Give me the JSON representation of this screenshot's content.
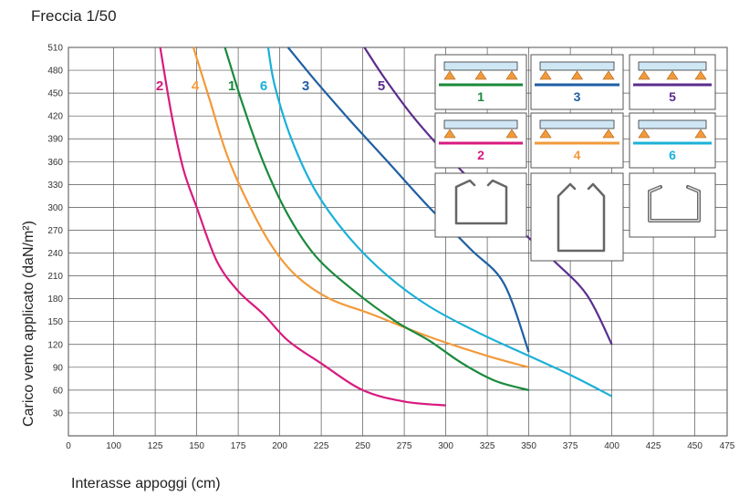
{
  "chart_data": {
    "type": "line",
    "title": "Freccia 1/50",
    "xlabel": "Interasse appoggi  (cm)",
    "ylabel": "Carico vento applicato  (daN/m²)",
    "x_ticks": [
      "0",
      "100",
      "125",
      "150",
      "175",
      "200",
      "225",
      "250",
      "275",
      "300",
      "325",
      "350",
      "375",
      "400",
      "425",
      "450",
      "475"
    ],
    "y_ticks": [
      30,
      60,
      90,
      120,
      150,
      180,
      210,
      240,
      270,
      300,
      330,
      360,
      390,
      420,
      450,
      480,
      510
    ],
    "ylim": [
      0,
      510
    ],
    "xlim": [
      0,
      475
    ],
    "grid": true,
    "series": [
      {
        "name": "2",
        "color": "#d81b7f",
        "points": [
          [
            128,
            510
          ],
          [
            135,
            420
          ],
          [
            142,
            350
          ],
          [
            150,
            300
          ],
          [
            162,
            230
          ],
          [
            175,
            190
          ],
          [
            190,
            160
          ],
          [
            205,
            125
          ],
          [
            225,
            95
          ],
          [
            250,
            60
          ],
          [
            275,
            45
          ],
          [
            300,
            40
          ]
        ]
      },
      {
        "name": "4",
        "color": "#f29a3a",
        "points": [
          [
            148,
            510
          ],
          [
            158,
            440
          ],
          [
            168,
            370
          ],
          [
            180,
            310
          ],
          [
            195,
            250
          ],
          [
            210,
            210
          ],
          [
            230,
            180
          ],
          [
            255,
            160
          ],
          [
            290,
            130
          ],
          [
            325,
            105
          ],
          [
            350,
            90
          ]
        ]
      },
      {
        "name": "1",
        "color": "#1a8a3c",
        "points": [
          [
            167,
            510
          ],
          [
            177,
            440
          ],
          [
            190,
            360
          ],
          [
            205,
            290
          ],
          [
            222,
            235
          ],
          [
            245,
            190
          ],
          [
            270,
            150
          ],
          [
            290,
            125
          ],
          [
            310,
            95
          ],
          [
            330,
            72
          ],
          [
            350,
            60
          ]
        ]
      },
      {
        "name": "6",
        "color": "#1bb0d8",
        "points": [
          [
            193,
            510
          ],
          [
            197,
            460
          ],
          [
            207,
            390
          ],
          [
            222,
            320
          ],
          [
            242,
            260
          ],
          [
            265,
            210
          ],
          [
            290,
            170
          ],
          [
            320,
            135
          ],
          [
            350,
            105
          ],
          [
            375,
            80
          ],
          [
            400,
            52
          ]
        ]
      },
      {
        "name": "3",
        "color": "#1f5fa2",
        "points": [
          [
            205,
            510
          ],
          [
            220,
            470
          ],
          [
            240,
            420
          ],
          [
            262,
            370
          ],
          [
            285,
            310
          ],
          [
            310,
            255
          ],
          [
            335,
            200
          ],
          [
            350,
            165
          ],
          [
            365,
            145
          ],
          [
            378,
            125
          ],
          [
            350,
            110
          ]
        ]
      },
      {
        "name": "5",
        "color": "#5b2d8e",
        "points": [
          [
            251,
            510
          ],
          [
            263,
            470
          ],
          [
            280,
            420
          ],
          [
            300,
            370
          ],
          [
            322,
            320
          ],
          [
            345,
            270
          ],
          [
            365,
            230
          ],
          [
            385,
            185
          ],
          [
            400,
            120
          ]
        ]
      }
    ]
  },
  "legend_boxes": [
    {
      "number": "1",
      "color": "#1a8a3c",
      "supports": 3
    },
    {
      "number": "3",
      "color": "#1f5fa2",
      "supports": 3
    },
    {
      "number": "5",
      "color": "#5b2d8e",
      "supports": 3
    },
    {
      "number": "2",
      "color": "#d81b7f",
      "supports": 2
    },
    {
      "number": "4",
      "color": "#f29a3a",
      "supports": 2
    },
    {
      "number": "6",
      "color": "#1bb0d8",
      "supports": 2
    }
  ]
}
